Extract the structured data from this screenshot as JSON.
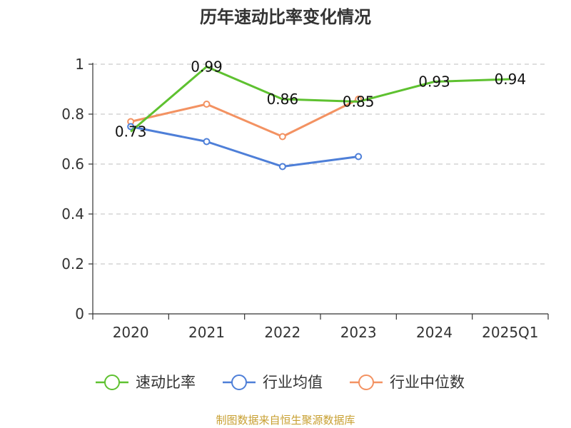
{
  "chart_data": {
    "type": "line",
    "title": "历年速动比率变化情况",
    "categories": [
      "2020",
      "2021",
      "2022",
      "2023",
      "2024",
      "2025Q1"
    ],
    "ylim": [
      0,
      1
    ],
    "yticks": [
      "0",
      "0.2",
      "0.4",
      "0.6",
      "0.8",
      "1"
    ],
    "grid": true,
    "legend_position": "bottom",
    "series": [
      {
        "name": "速动比率",
        "color": "#5ec130",
        "values": [
          0.73,
          0.99,
          0.86,
          0.85,
          0.93,
          0.94
        ],
        "labels": [
          "0.73",
          "0.99",
          "0.86",
          "0.85",
          "0.93",
          "0.94"
        ]
      },
      {
        "name": "行业均值",
        "color": "#4e7fd8",
        "values": [
          0.75,
          0.69,
          0.59,
          0.63,
          null,
          null
        ]
      },
      {
        "name": "行业中位数",
        "color": "#f39262",
        "values": [
          0.77,
          0.84,
          0.71,
          0.86,
          null,
          null
        ]
      }
    ]
  },
  "source": "制图数据来自恒生聚源数据库"
}
